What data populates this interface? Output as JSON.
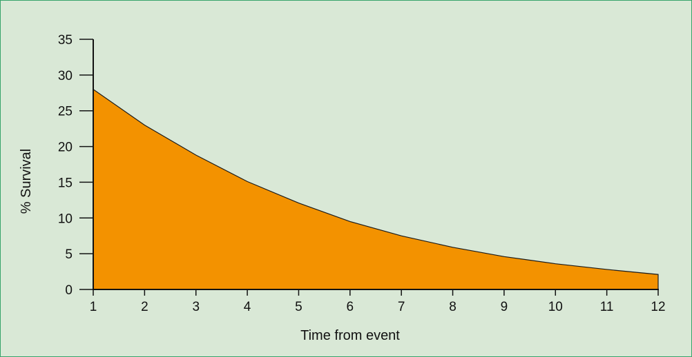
{
  "chart_data": {
    "type": "area",
    "title": "",
    "xlabel": "Time from event",
    "ylabel": "% Survival",
    "x": [
      1,
      2,
      3,
      4,
      5,
      6,
      7,
      8,
      9,
      10,
      11,
      12
    ],
    "series": [
      {
        "values": [
          28,
          23,
          18.8,
          15.1,
          12.1,
          9.5,
          7.5,
          5.9,
          4.6,
          3.6,
          2.8,
          2.1
        ]
      }
    ],
    "xticks": [
      "1",
      "2",
      "3",
      "4",
      "5",
      "6",
      "7",
      "8",
      "9",
      "10",
      "11",
      "12"
    ],
    "yticks": [
      "0",
      "5",
      "10",
      "15",
      "20",
      "25",
      "30",
      "35"
    ],
    "xlim": [
      1,
      12
    ],
    "ylim": [
      0,
      35
    ],
    "grid": false,
    "colors": {
      "fill": "#f39200",
      "background": "#d9e8d6",
      "frame": "#36a36a",
      "axis": "#111111"
    }
  }
}
